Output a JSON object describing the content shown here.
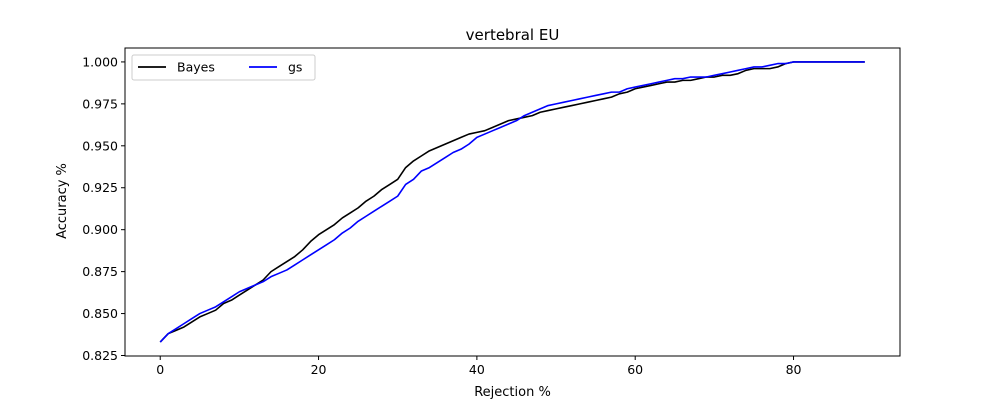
{
  "chart_data": {
    "type": "line",
    "title": "vertebral EU",
    "xlabel": "Rejection %",
    "ylabel": "Accuracy %",
    "xlim": [
      -4.45,
      93.45
    ],
    "ylim": [
      0.8247,
      1.0083
    ],
    "xticks": [
      0,
      20,
      40,
      60,
      80
    ],
    "yticks": [
      0.825,
      0.85,
      0.875,
      0.9,
      0.925,
      0.95,
      0.975,
      1.0
    ],
    "xtick_labels": [
      "0",
      "20",
      "40",
      "60",
      "80"
    ],
    "ytick_labels": [
      "0.825",
      "0.850",
      "0.875",
      "0.900",
      "0.925",
      "0.950",
      "0.975",
      "1.000"
    ],
    "grid": false,
    "legend_position": "top-left",
    "series": [
      {
        "name": "Bayes",
        "color": "#000000",
        "x": [
          0,
          1,
          2,
          3,
          4,
          5,
          6,
          7,
          8,
          9,
          10,
          11,
          12,
          13,
          14,
          15,
          16,
          17,
          18,
          19,
          20,
          21,
          22,
          23,
          24,
          25,
          26,
          27,
          28,
          29,
          30,
          31,
          32,
          33,
          34,
          35,
          36,
          37,
          38,
          39,
          40,
          41,
          42,
          43,
          44,
          45,
          46,
          47,
          48,
          49,
          50,
          51,
          52,
          53,
          54,
          55,
          56,
          57,
          58,
          59,
          60,
          61,
          62,
          63,
          64,
          65,
          66,
          67,
          68,
          69,
          70,
          71,
          72,
          73,
          74,
          75,
          76,
          77,
          78,
          79,
          80,
          81,
          82,
          83,
          84,
          85,
          86,
          87,
          88,
          89
        ],
        "y": [
          0.833,
          0.838,
          0.84,
          0.842,
          0.845,
          0.848,
          0.85,
          0.852,
          0.856,
          0.858,
          0.861,
          0.864,
          0.867,
          0.87,
          0.875,
          0.878,
          0.881,
          0.884,
          0.888,
          0.893,
          0.897,
          0.9,
          0.903,
          0.907,
          0.91,
          0.913,
          0.917,
          0.92,
          0.924,
          0.927,
          0.93,
          0.937,
          0.941,
          0.944,
          0.947,
          0.949,
          0.951,
          0.953,
          0.955,
          0.957,
          0.958,
          0.959,
          0.961,
          0.963,
          0.965,
          0.966,
          0.967,
          0.968,
          0.97,
          0.971,
          0.972,
          0.973,
          0.974,
          0.975,
          0.976,
          0.977,
          0.978,
          0.979,
          0.981,
          0.982,
          0.984,
          0.985,
          0.986,
          0.987,
          0.988,
          0.988,
          0.989,
          0.989,
          0.99,
          0.991,
          0.991,
          0.992,
          0.992,
          0.993,
          0.995,
          0.996,
          0.996,
          0.996,
          0.997,
          0.999,
          1.0,
          1.0,
          1.0,
          1.0,
          1.0,
          1.0,
          1.0,
          1.0,
          1.0,
          1.0
        ]
      },
      {
        "name": "gs",
        "color": "#0000ff",
        "x": [
          0,
          1,
          2,
          3,
          4,
          5,
          6,
          7,
          8,
          9,
          10,
          11,
          12,
          13,
          14,
          15,
          16,
          17,
          18,
          19,
          20,
          21,
          22,
          23,
          24,
          25,
          26,
          27,
          28,
          29,
          30,
          31,
          32,
          33,
          34,
          35,
          36,
          37,
          38,
          39,
          40,
          41,
          42,
          43,
          44,
          45,
          46,
          47,
          48,
          49,
          50,
          51,
          52,
          53,
          54,
          55,
          56,
          57,
          58,
          59,
          60,
          61,
          62,
          63,
          64,
          65,
          66,
          67,
          68,
          69,
          70,
          71,
          72,
          73,
          74,
          75,
          76,
          77,
          78,
          79,
          80,
          81,
          82,
          83,
          84,
          85,
          86,
          87,
          88,
          89
        ],
        "y": [
          0.833,
          0.838,
          0.841,
          0.844,
          0.847,
          0.85,
          0.852,
          0.854,
          0.857,
          0.86,
          0.863,
          0.865,
          0.867,
          0.869,
          0.872,
          0.874,
          0.876,
          0.879,
          0.882,
          0.885,
          0.888,
          0.891,
          0.894,
          0.898,
          0.901,
          0.905,
          0.908,
          0.911,
          0.914,
          0.917,
          0.92,
          0.927,
          0.93,
          0.935,
          0.937,
          0.94,
          0.943,
          0.946,
          0.948,
          0.951,
          0.955,
          0.957,
          0.959,
          0.961,
          0.963,
          0.965,
          0.968,
          0.97,
          0.972,
          0.974,
          0.975,
          0.976,
          0.977,
          0.978,
          0.979,
          0.98,
          0.981,
          0.982,
          0.982,
          0.984,
          0.985,
          0.986,
          0.987,
          0.988,
          0.989,
          0.99,
          0.99,
          0.991,
          0.991,
          0.991,
          0.992,
          0.993,
          0.994,
          0.995,
          0.996,
          0.997,
          0.997,
          0.998,
          0.999,
          0.999,
          1.0,
          1.0,
          1.0,
          1.0,
          1.0,
          1.0,
          1.0,
          1.0,
          1.0,
          1.0
        ]
      }
    ]
  }
}
